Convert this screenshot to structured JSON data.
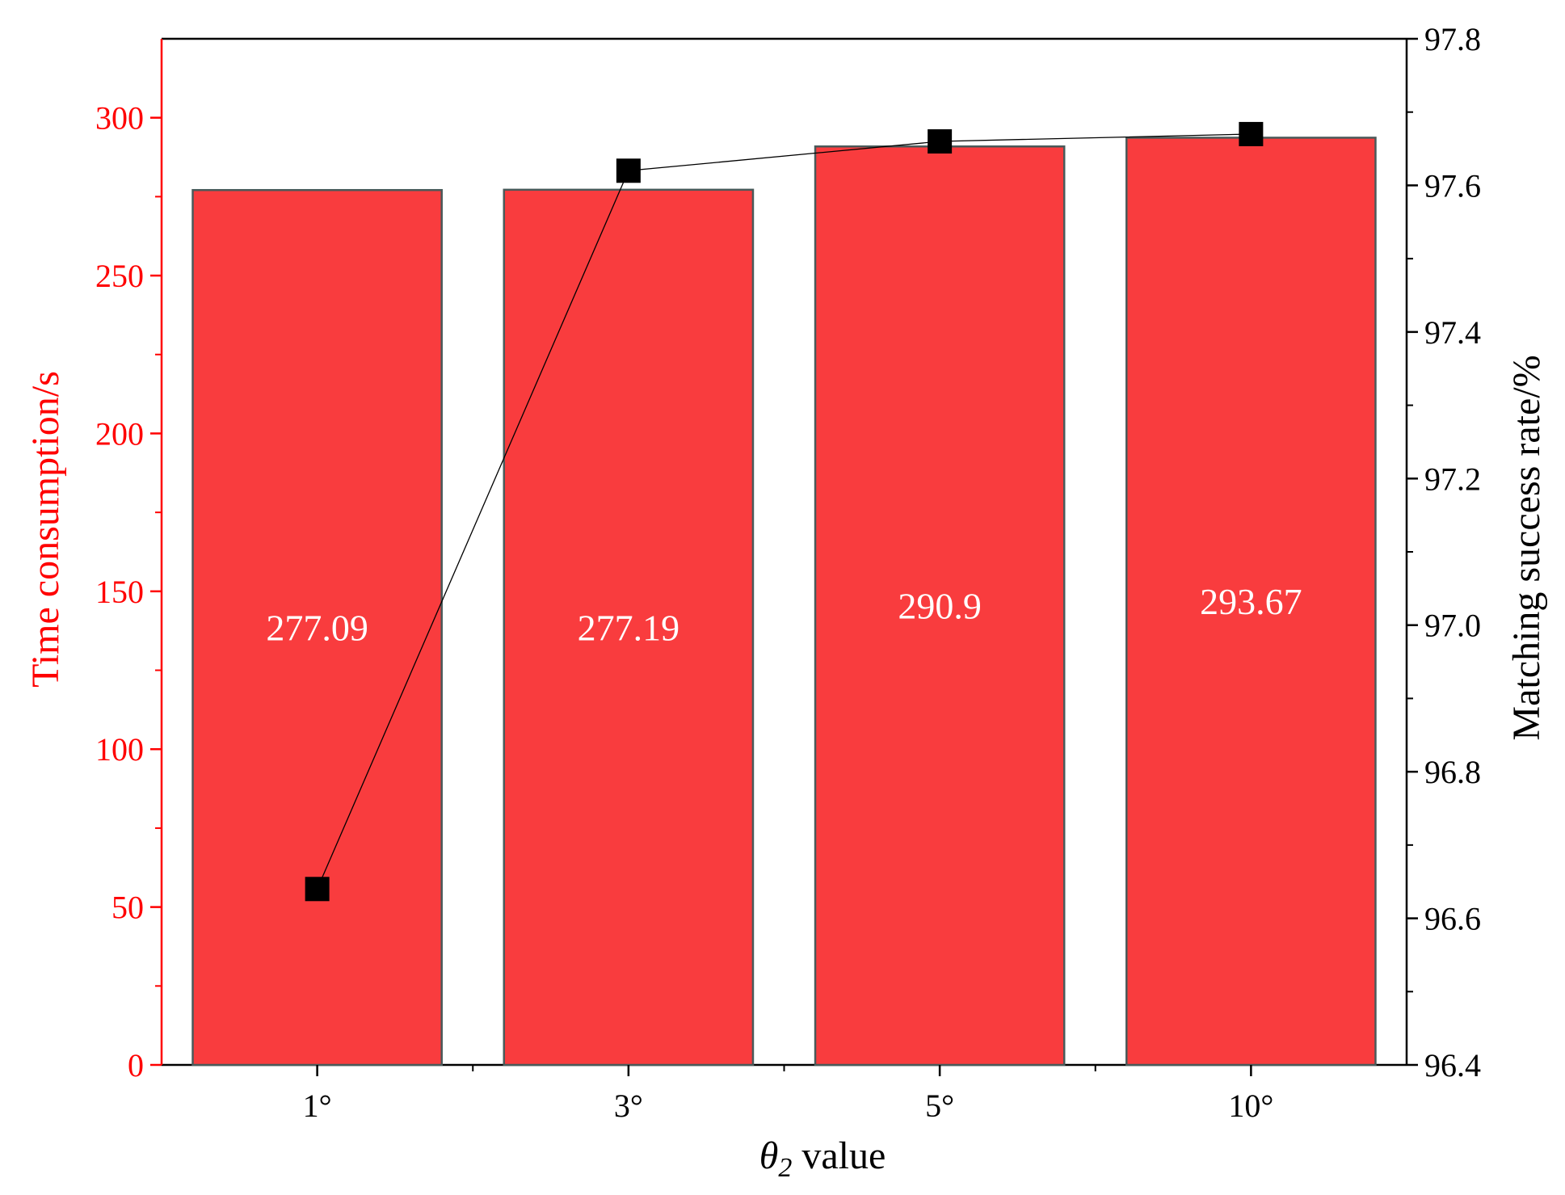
{
  "chart_data": {
    "type": "bar",
    "categories": [
      "1°",
      "3°",
      "5°",
      "10°"
    ],
    "series": [
      {
        "name": "Time consumption/s",
        "type": "bar",
        "axis": "left",
        "values": [
          277.09,
          277.19,
          290.9,
          293.67
        ],
        "data_labels": [
          "277.09",
          "277.19",
          "290.9",
          "293.67"
        ]
      },
      {
        "name": "Matching success rate/%",
        "type": "line",
        "axis": "right",
        "values": [
          96.64,
          97.62,
          97.66,
          97.67
        ]
      }
    ],
    "xlabel": {
      "symbol": "θ",
      "subscript": "2",
      "text": "value"
    },
    "ylabel_left": "Time consumption/s",
    "ylabel_right": "Matching success rate/%",
    "ylim_left": [
      0,
      325
    ],
    "yticks_left": [
      0,
      50,
      100,
      150,
      200,
      250,
      300
    ],
    "yticks_left_labels": [
      "0",
      "50",
      "100",
      "150",
      "200",
      "250",
      "300"
    ],
    "ylim_right": [
      96.4,
      97.8
    ],
    "yticks_right": [
      96.4,
      96.6,
      96.8,
      97.0,
      97.2,
      97.4,
      97.6,
      97.8
    ],
    "yticks_right_labels": [
      "96.4",
      "96.6",
      "96.8",
      "97.0",
      "97.2",
      "97.4",
      "97.6",
      "97.8"
    ],
    "grid": false,
    "legend": "none",
    "colors": {
      "bar_fill": "#f93c3e",
      "bar_stroke": "#4a5a5a",
      "left_axis": "#ff0000",
      "right_axis": "#000000",
      "line": "#000000",
      "marker": "#000000",
      "bar_label": "#ffffff"
    }
  }
}
